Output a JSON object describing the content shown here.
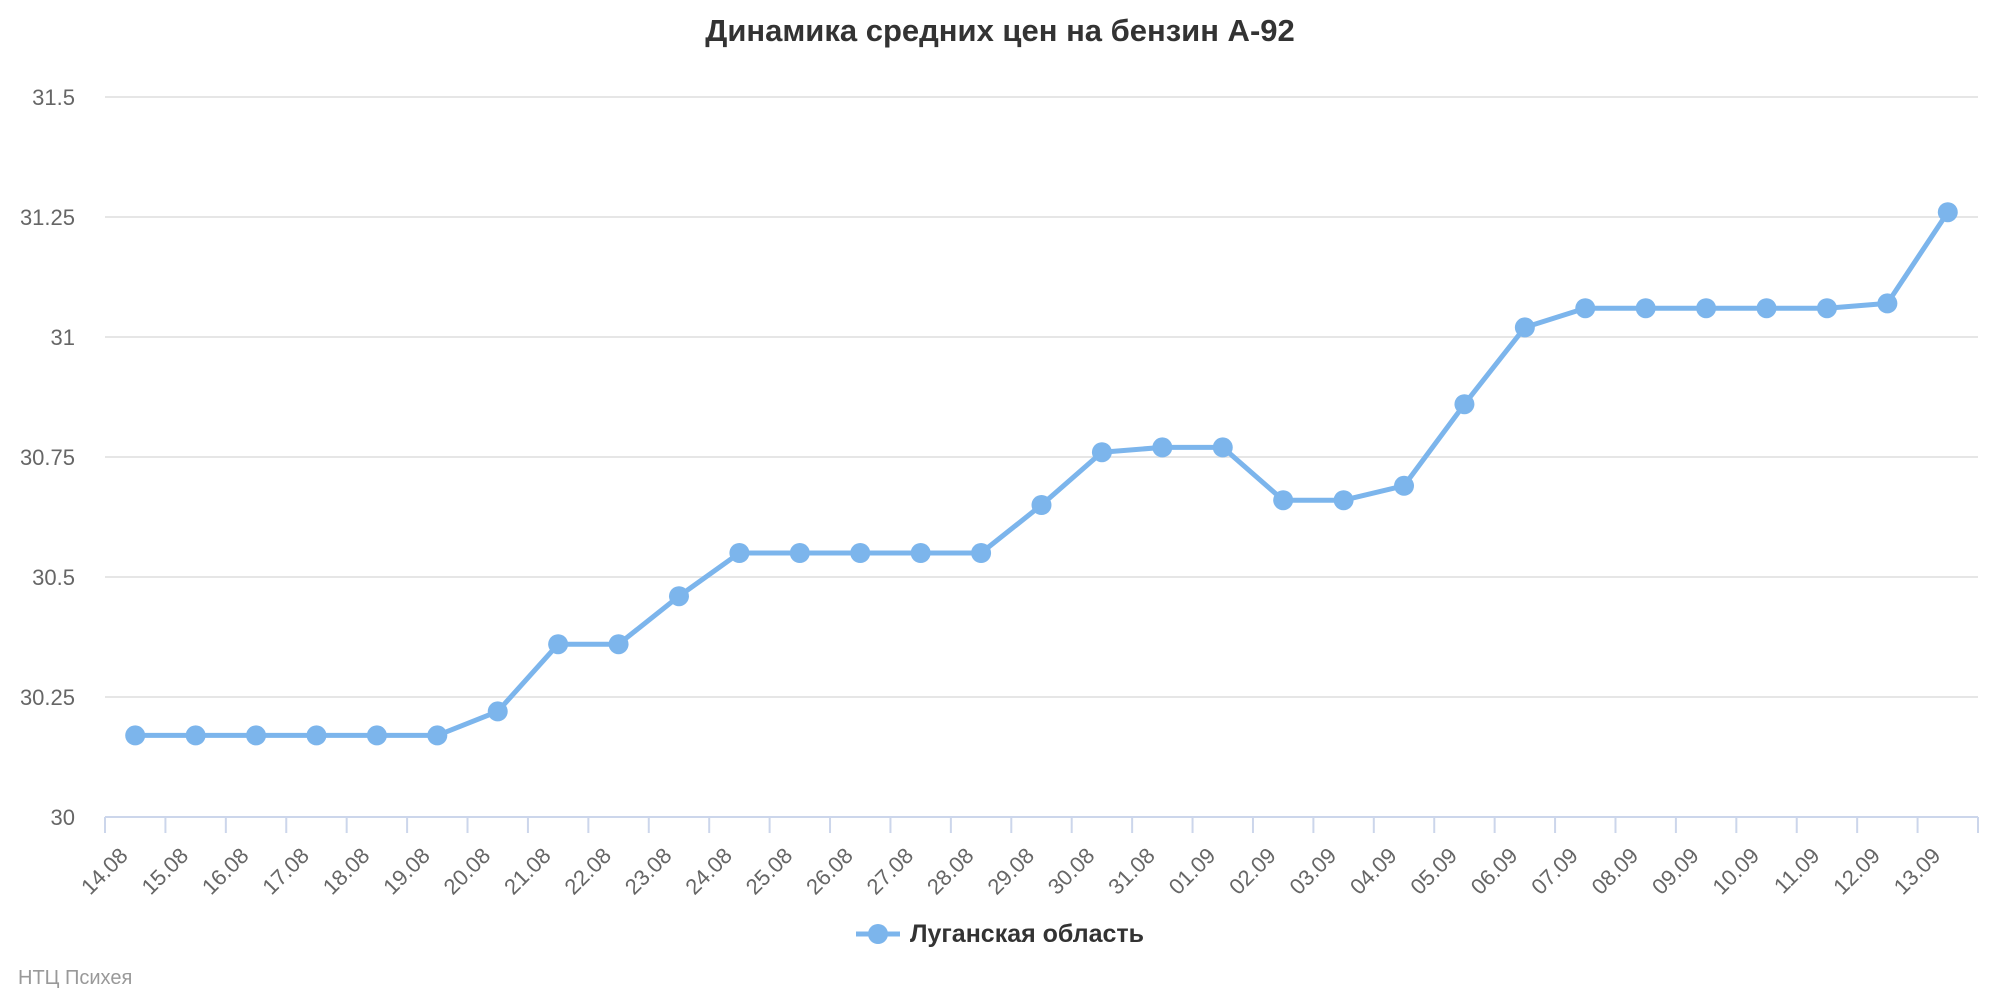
{
  "footer": {
    "text": "НТЦ Психея"
  },
  "colors": {
    "series": "#7cb5ec",
    "grid": "#e6e6e6",
    "axis": "#ccd6eb",
    "axis_label": "#666666",
    "title": "#333333",
    "legend_text": "#333333",
    "footer": "#999999",
    "background": "#ffffff"
  },
  "chart_data": {
    "type": "line",
    "title": "Динамика средних цен на бензин А-92",
    "xlabel": "",
    "ylabel": "",
    "ylim": [
      30,
      31.5
    ],
    "yticks": [
      30,
      30.25,
      30.5,
      30.75,
      31,
      31.25,
      31.5
    ],
    "grid": true,
    "legend_position": "bottom",
    "categories": [
      "14.08",
      "15.08",
      "16.08",
      "17.08",
      "18.08",
      "19.08",
      "20.08",
      "21.08",
      "22.08",
      "23.08",
      "24.08",
      "25.08",
      "26.08",
      "27.08",
      "28.08",
      "29.08",
      "30.08",
      "31.08",
      "01.09",
      "02.09",
      "03.09",
      "04.09",
      "05.09",
      "06.09",
      "07.09",
      "08.09",
      "09.09",
      "10.09",
      "11.09",
      "12.09",
      "13.09"
    ],
    "series": [
      {
        "name": "Луганская область",
        "values": [
          30.17,
          30.17,
          30.17,
          30.17,
          30.17,
          30.17,
          30.22,
          30.36,
          30.36,
          30.46,
          30.55,
          30.55,
          30.55,
          30.55,
          30.55,
          30.65,
          30.76,
          30.77,
          30.77,
          30.66,
          30.66,
          30.69,
          30.86,
          31.02,
          31.06,
          31.06,
          31.06,
          31.06,
          31.06,
          31.07,
          31.26
        ]
      }
    ]
  }
}
